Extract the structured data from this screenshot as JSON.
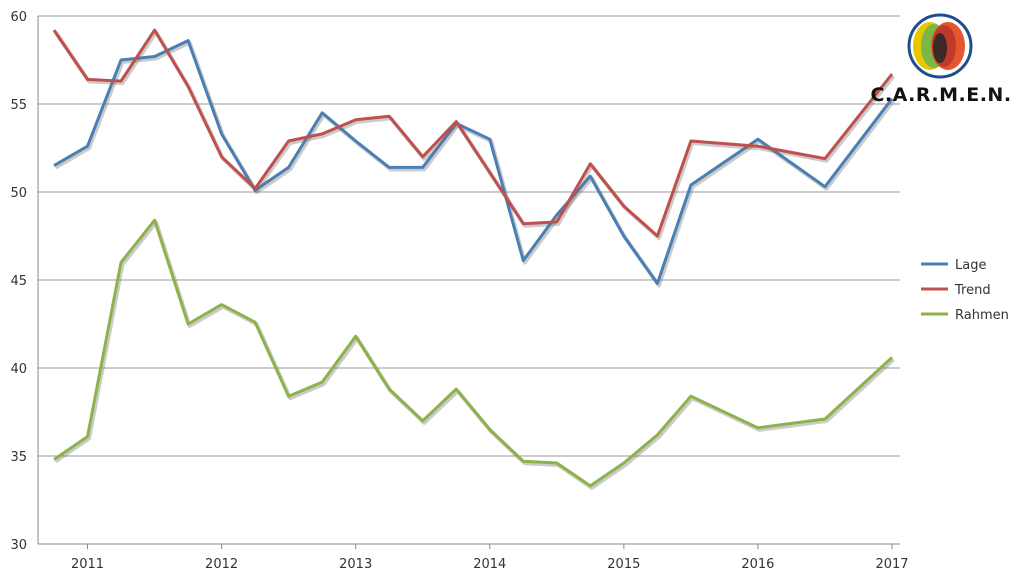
{
  "chart_data": {
    "type": "line",
    "title": "",
    "xlabel": "",
    "ylabel": "",
    "ylim": [
      30,
      60
    ],
    "yticks": [
      30,
      35,
      40,
      45,
      50,
      55,
      60
    ],
    "xtick_labels": [
      "2011",
      "2012",
      "2013",
      "2014",
      "2015",
      "2016",
      "2017"
    ],
    "x": [
      2010.75,
      2011.0,
      2011.25,
      2011.5,
      2011.75,
      2012.0,
      2012.25,
      2012.5,
      2012.75,
      2013.0,
      2013.25,
      2013.5,
      2013.75,
      2014.0,
      2014.25,
      2014.5,
      2014.75,
      2015.0,
      2015.25,
      2015.5,
      2016.0,
      2016.5,
      2017.0
    ],
    "series": [
      {
        "name": "Lage",
        "color": "#4a7fb5",
        "values": [
          51.5,
          52.6,
          57.5,
          57.7,
          58.6,
          53.3,
          50.1,
          51.4,
          54.5,
          52.9,
          51.4,
          51.4,
          53.9,
          53.0,
          46.1,
          48.7,
          50.9,
          47.5,
          44.8,
          50.4,
          53.0,
          50.3,
          55.3
        ]
      },
      {
        "name": "Trend",
        "color": "#c0504d",
        "values": [
          59.2,
          56.4,
          56.3,
          59.2,
          56.0,
          52.0,
          50.2,
          52.9,
          53.3,
          54.1,
          54.3,
          52.0,
          54.0,
          51.1,
          48.2,
          48.3,
          51.6,
          49.2,
          47.5,
          52.9,
          52.6,
          51.9,
          56.7
        ]
      },
      {
        "name": "Rahmen",
        "color": "#8cb34a",
        "values": [
          34.8,
          36.1,
          46.0,
          48.4,
          42.5,
          43.6,
          42.6,
          38.4,
          39.2,
          41.8,
          38.8,
          37.0,
          38.8,
          36.5,
          34.7,
          34.6,
          33.3,
          34.6,
          36.2,
          38.4,
          36.6,
          37.1,
          40.6
        ]
      }
    ],
    "grid": true,
    "legend_position": "right"
  },
  "logo": {
    "text": "C.A.R.M.E.N.",
    "icon": "carmen-logo-icon"
  }
}
